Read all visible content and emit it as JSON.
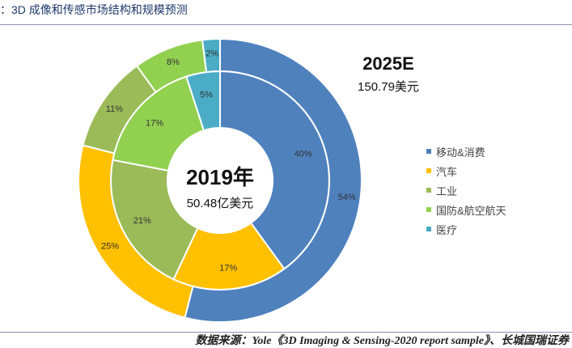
{
  "title": "：3D 成像和传感市场结构和规模预测",
  "source": "数据来源：Yole《3D Imaging & Sensing-2020 report sample》、长城国瑞证券",
  "chart_data": {
    "type": "pie",
    "style": "nested-donut",
    "categories": [
      "移动&消费",
      "汽车",
      "工业",
      "国防&航空航天",
      "医疗"
    ],
    "colors": [
      "#4f81bd",
      "#ffc000",
      "#9bbb59",
      "#92d050",
      "#4bacc6"
    ],
    "series": [
      {
        "name": "2019年",
        "ring": "inner",
        "values": [
          40,
          17,
          21,
          17,
          5
        ],
        "labels": [
          "40%",
          "17%",
          "21%",
          "17%",
          "5%"
        ]
      },
      {
        "name": "2025E",
        "ring": "outer",
        "values": [
          54,
          25,
          11,
          8,
          2
        ],
        "labels": [
          "54%",
          "25%",
          "11%",
          "8%",
          "2%"
        ]
      }
    ],
    "center_label": {
      "year": "2019年",
      "value": "50.48亿美元"
    },
    "outer_label": {
      "year": "2025E",
      "value": "150.79美元"
    },
    "legend_position": "right"
  }
}
